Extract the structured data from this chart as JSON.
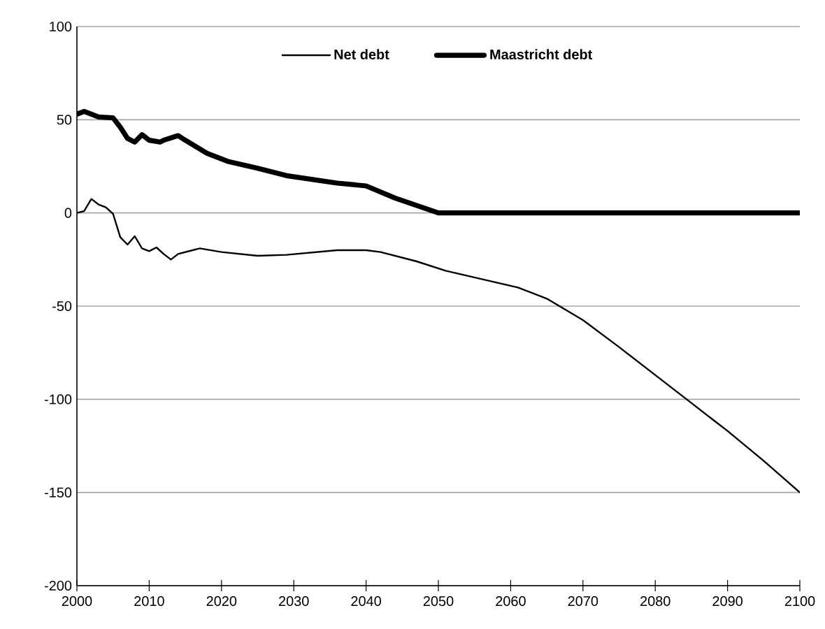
{
  "chart_data": {
    "type": "line",
    "xlim": [
      2000,
      2100
    ],
    "ylim": [
      -200,
      100
    ],
    "xticks": [
      2000,
      2010,
      2020,
      2030,
      2040,
      2050,
      2060,
      2070,
      2080,
      2090,
      2100
    ],
    "yticks": [
      -200,
      -150,
      -100,
      -50,
      0,
      50,
      100
    ],
    "grid": "y",
    "legend": "top",
    "marker": "none",
    "line_style": "solid",
    "series": [
      {
        "name": "Net debt",
        "color": "#000000",
        "x": [
          2000,
          2001,
          2002,
          2003,
          2004,
          2005,
          2006,
          2007,
          2008,
          2009,
          2010,
          2011,
          2012,
          2013,
          2014,
          2016,
          2017,
          2020,
          2025,
          2029,
          2036,
          2040,
          2042,
          2047,
          2051,
          2056,
          2061,
          2065,
          2070,
          2075,
          2080,
          2085,
          2090,
          2095,
          2100
        ],
        "values": [
          0,
          1,
          7.5,
          4.5,
          3,
          -0.5,
          -13,
          -17,
          -12.5,
          -19,
          -20.5,
          -18.5,
          -22,
          -25,
          -22,
          -20,
          -19,
          -21,
          -23,
          -22.5,
          -20,
          -20,
          -21,
          -26,
          -31,
          -35.5,
          -40,
          -46,
          -57.5,
          -72,
          -87,
          -102,
          -117,
          -133,
          -150
        ]
      },
      {
        "name": "Maastricht debt",
        "color": "#000000",
        "x": [
          2000,
          2001,
          2002,
          2003,
          2005,
          2006,
          2007,
          2008,
          2009,
          2010,
          2011.5,
          2012,
          2014,
          2015,
          2018,
          2021,
          2025,
          2029,
          2036,
          2040,
          2044,
          2050,
          2100
        ],
        "values": [
          53,
          54.5,
          53,
          51.5,
          51,
          46,
          40,
          38,
          42,
          39,
          38,
          39,
          41.5,
          39,
          32,
          27.5,
          24,
          20,
          16,
          14.5,
          8,
          0,
          0
        ]
      }
    ]
  }
}
